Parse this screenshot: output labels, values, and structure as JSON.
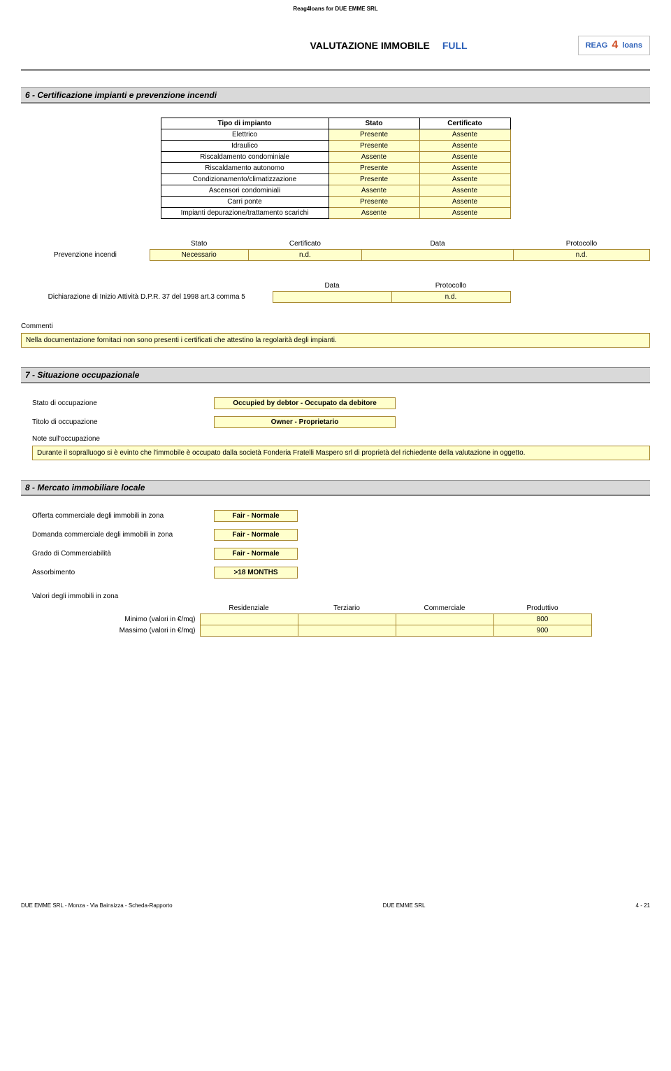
{
  "header_small": "Reag4loans for DUE EMME SRL",
  "title": "VALUTAZIONE IMMOBILE",
  "title_type": "FULL",
  "logo_left": "REAG",
  "logo_accent": "4",
  "logo_right": "loans",
  "section6_title": "6 - Certificazione impianti e prevenzione incendi",
  "table6_headers": {
    "c1": "Tipo di impianto",
    "c2": "Stato",
    "c3": "Certificato"
  },
  "table6_rows": [
    {
      "c1": "Elettrico",
      "c2": "Presente",
      "c3": "Assente"
    },
    {
      "c1": "Idraulico",
      "c2": "Presente",
      "c3": "Assente"
    },
    {
      "c1": "Riscaldamento condominiale",
      "c2": "Assente",
      "c3": "Assente"
    },
    {
      "c1": "Riscaldamento autonomo",
      "c2": "Presente",
      "c3": "Assente"
    },
    {
      "c1": "Condizionamento/climatizzazione",
      "c2": "Presente",
      "c3": "Assente"
    },
    {
      "c1": "Ascensori condominiali",
      "c2": "Assente",
      "c3": "Assente"
    },
    {
      "c1": "Carri ponte",
      "c2": "Presente",
      "c3": "Assente"
    },
    {
      "c1": "Impianti depurazione/trattamento scarichi",
      "c2": "Assente",
      "c3": "Assente"
    }
  ],
  "prev_inc_label": "Prevenzione incendi",
  "prev_headers": {
    "stato": "Stato",
    "cert": "Certificato",
    "data": "Data",
    "prot": "Protocollo"
  },
  "prev_values": {
    "stato": "Necessario",
    "cert": "n.d.",
    "data": "",
    "prot": "n.d."
  },
  "dich_label": "Dichiarazione di Inizio Attività D.P.R. 37 del 1998 art.3 comma 5",
  "dich_headers": {
    "data": "Data",
    "prot": "Protocollo"
  },
  "dich_values": {
    "data": "",
    "prot": "n.d."
  },
  "commenti_label": "Commenti",
  "commenti_text": "Nella documentazione fornitaci non sono presenti i certificati che attestino la regolarità degli impianti.",
  "section7_title": "7 - Situazione occupazionale",
  "stato_occ_label": "Stato di occupazione",
  "stato_occ_value": "Occupied by debtor - Occupato da debitore",
  "titolo_occ_label": "Titolo di occupazione",
  "titolo_occ_value": "Owner - Proprietario",
  "note_occ_label": "Note sull'occupazione",
  "note_occ_text": "Durante il sopralluogo si è evinto che l'immobile è occupato dalla società Fonderia Fratelli Maspero srl di proprietà del richiedente della valutazione in oggetto.",
  "section8_title": "8 - Mercato immobiliare locale",
  "offerta_label": "Offerta commerciale degli immobili in zona",
  "offerta_value": "Fair - Normale",
  "domanda_label": "Domanda commerciale degli immobili in zona",
  "domanda_value": "Fair - Normale",
  "grado_label": "Grado di Commerciabilità",
  "grado_value": "Fair - Normale",
  "assorb_label": "Assorbimento",
  "assorb_value": ">18 MONTHS",
  "valori_label": "Valori degli immobili in zona",
  "valori_headers": {
    "res": "Residenziale",
    "ter": "Terziario",
    "com": "Commerciale",
    "prod": "Produttivo"
  },
  "min_label": "Minimo    (valori in €/mq)",
  "max_label": "Massimo (valori in €/mq)",
  "min_values": {
    "res": "",
    "ter": "",
    "com": "",
    "prod": "800"
  },
  "max_values": {
    "res": "",
    "ter": "",
    "com": "",
    "prod": "900"
  },
  "footer_left": "DUE EMME SRL - Monza - Via Bainsizza -  Scheda-Rapporto",
  "footer_center": "DUE EMME SRL",
  "footer_right": "4  -  21"
}
